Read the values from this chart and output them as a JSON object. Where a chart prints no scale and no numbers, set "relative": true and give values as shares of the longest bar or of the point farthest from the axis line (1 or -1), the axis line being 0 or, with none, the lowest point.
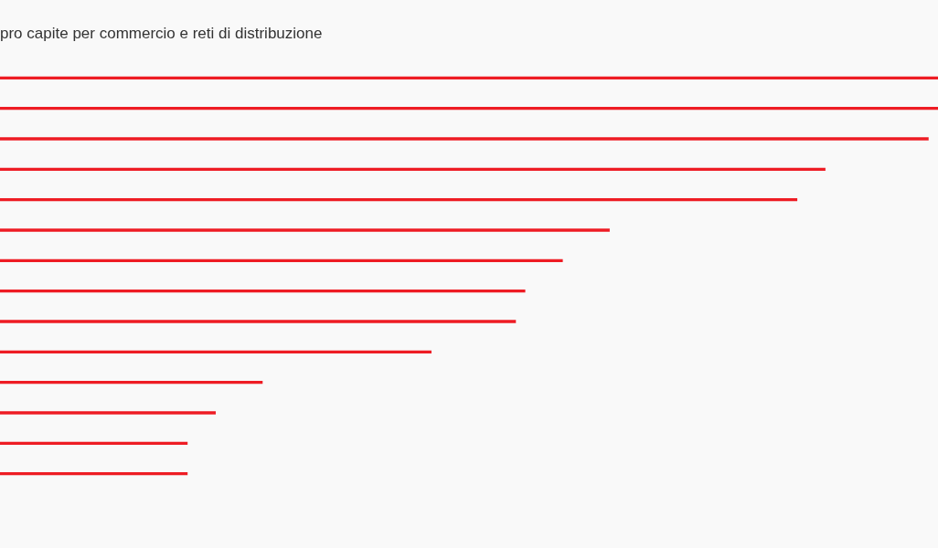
{
  "chart_data": {
    "type": "bar",
    "orientation": "horizontal",
    "relative": true,
    "title": "pro capite per commercio e reti di distribuzione",
    "categories": [
      null,
      null,
      null,
      null,
      null,
      null,
      null,
      null,
      null,
      null,
      null,
      null,
      null,
      null
    ],
    "values": [
      1,
      1,
      0.99,
      0.88,
      0.85,
      0.65,
      0.6,
      0.56,
      0.55,
      0.46,
      0.28,
      0.23,
      0.2,
      0.2
    ],
    "color": "#ee1c24"
  }
}
